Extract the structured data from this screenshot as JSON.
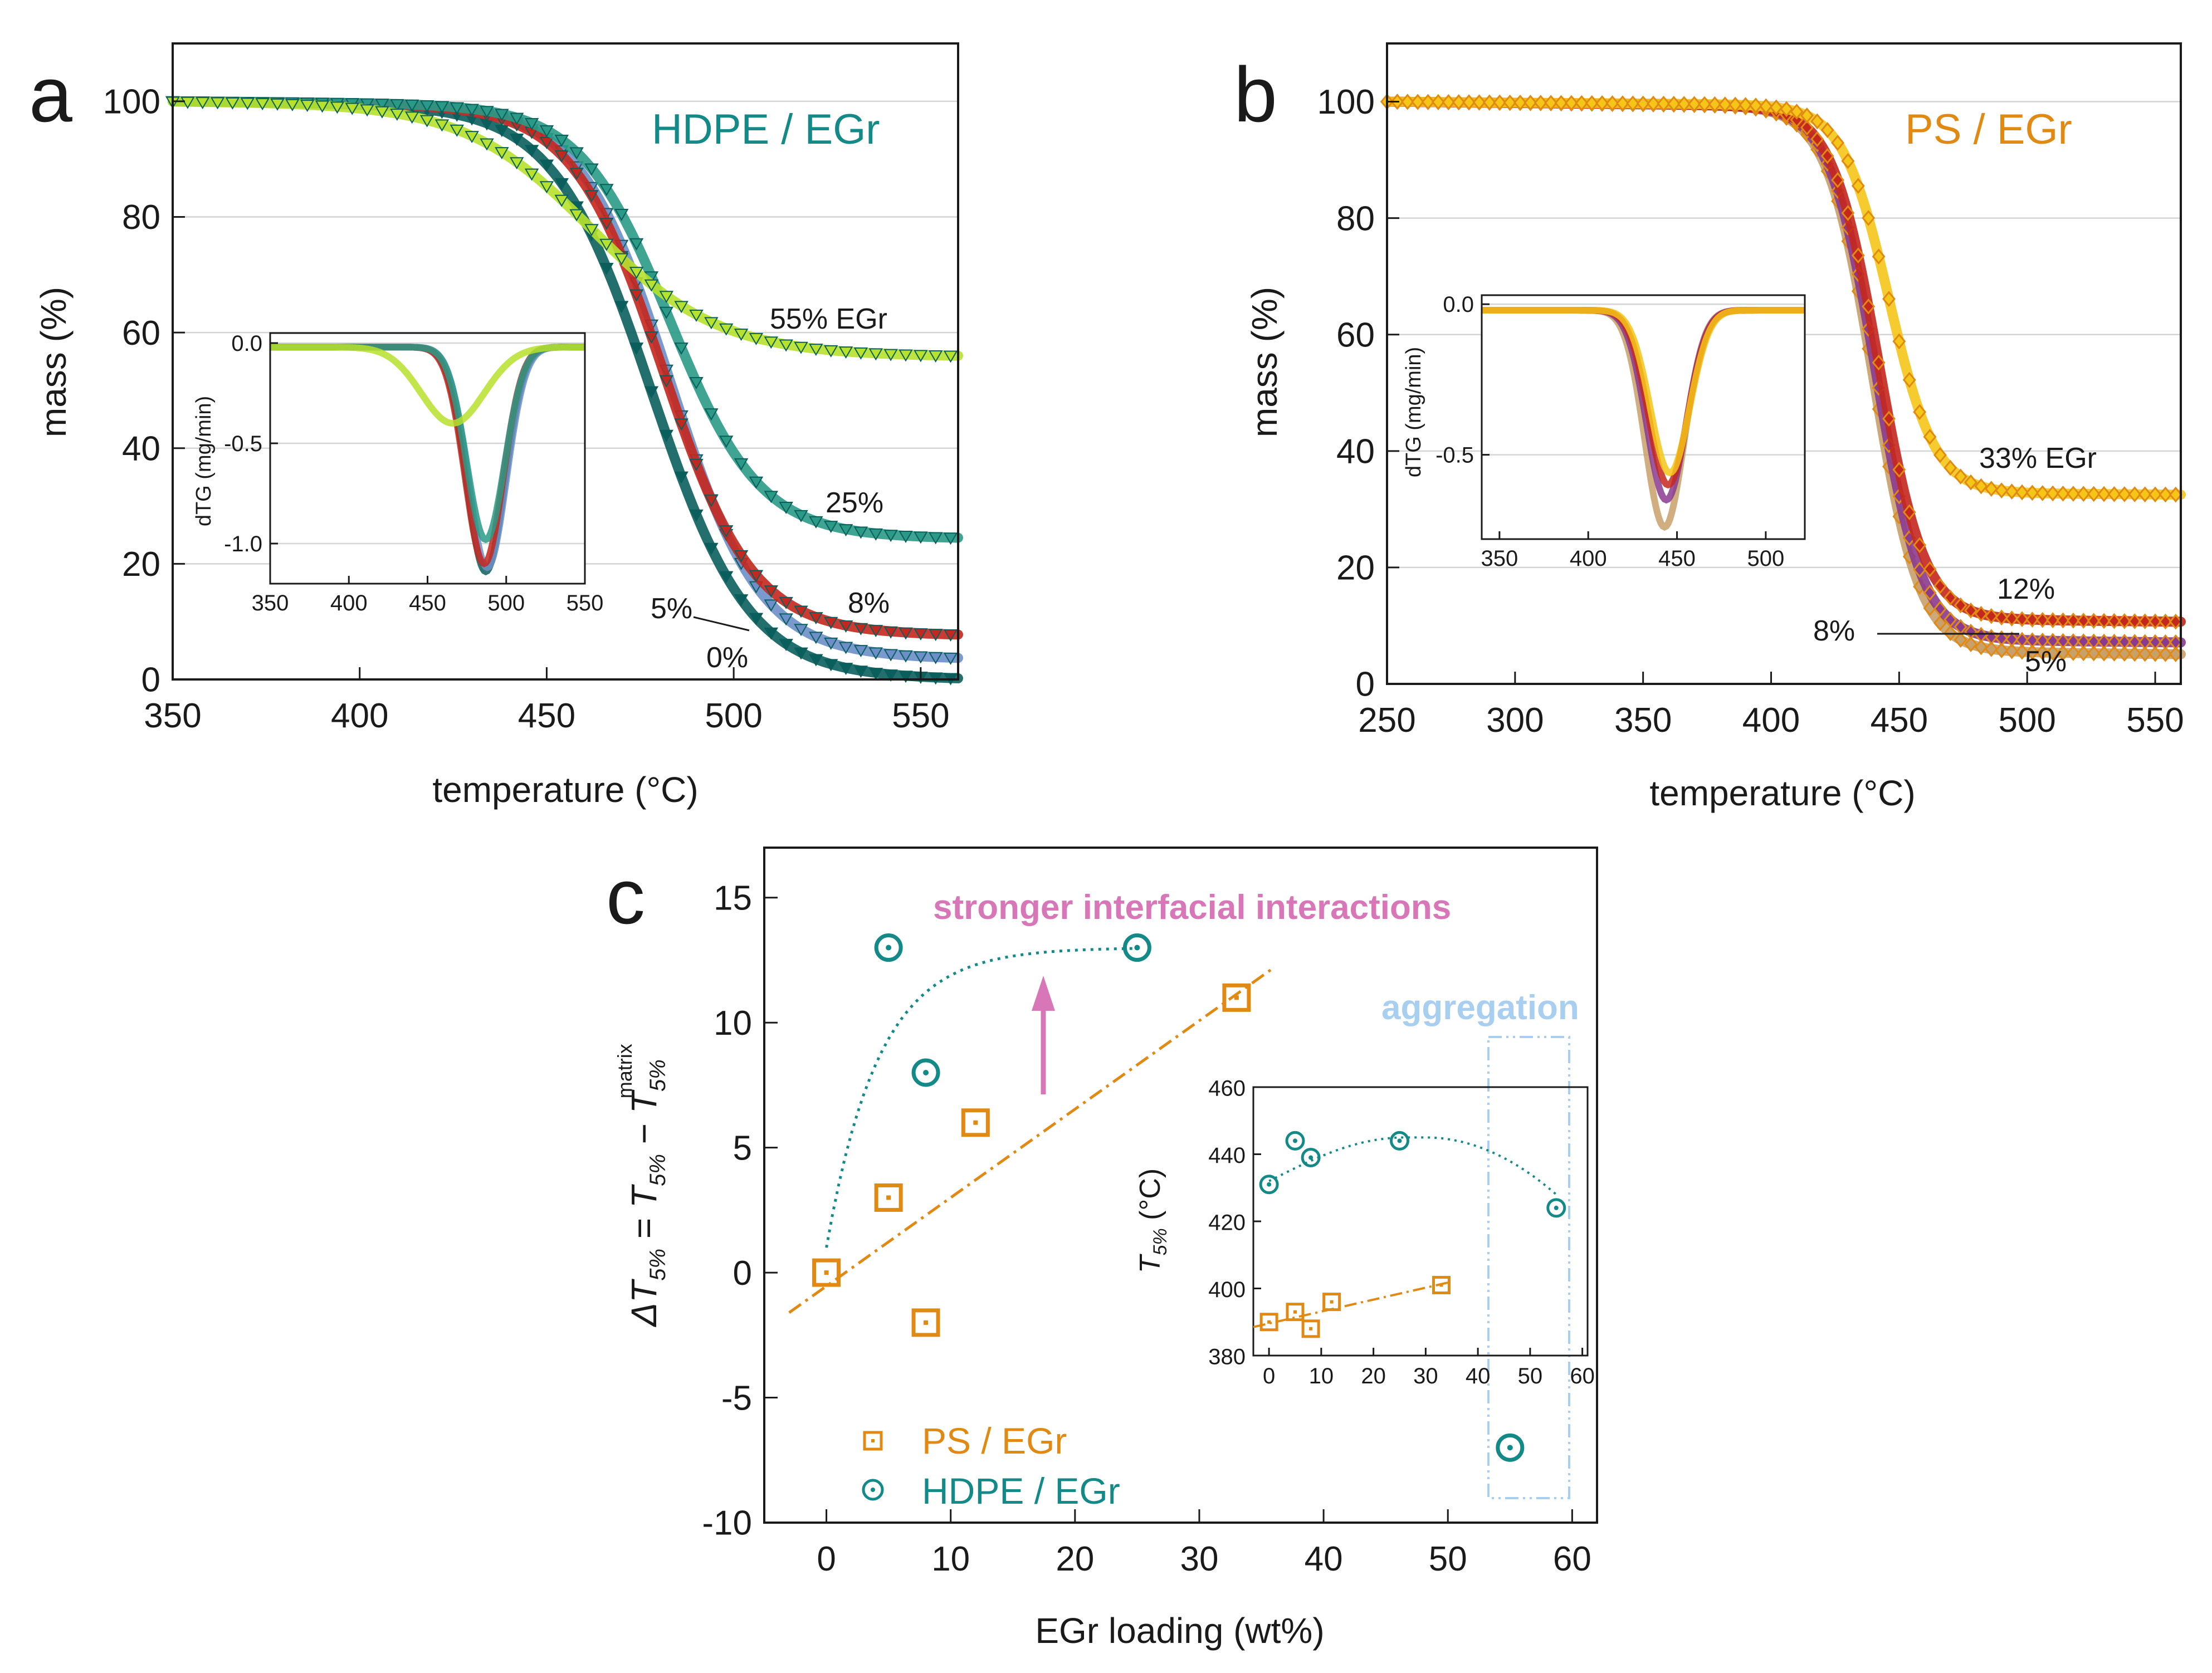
{
  "colors": {
    "hdpe": "#138a87",
    "hdpe_dark": "#0a5f5d",
    "ps": "#e08a14",
    "pink": "#d877b8",
    "agg": "#a9cff0",
    "lime": "#b7e12c",
    "red": "#c4271d",
    "purple": "#8a3a8f",
    "yellow": "#f5c518"
  },
  "chart_data": [
    {
      "panel": "a",
      "type": "line",
      "title": "HDPE / EGr",
      "xlabel": "temperature (°C)",
      "ylabel": "mass (%)",
      "xlim": [
        350,
        560
      ],
      "ylim": [
        0,
        110
      ],
      "xticks": [
        "350",
        "400",
        "450",
        "500",
        "550"
      ],
      "yticks": [
        "0",
        "20",
        "40",
        "60",
        "80",
        "100"
      ],
      "grid": true,
      "series": [
        {
          "name": "0%",
          "label": "0%",
          "onset": 478,
          "width": 13,
          "residue": 1.5,
          "color": "#0a5f5d"
        },
        {
          "name": "5%",
          "label": "5%",
          "onset": 483,
          "width": 12,
          "residue": 5,
          "color": "#6c8fc9"
        },
        {
          "name": "8%",
          "label": "8%",
          "onset": 481,
          "width": 12,
          "residue": 9,
          "color": "#c4271d"
        },
        {
          "name": "25%",
          "label": "25%",
          "onset": 483,
          "width": 12,
          "residue": 25.5,
          "color": "#2a9a86"
        },
        {
          "name": "55% EGr",
          "label": "55% EGr",
          "onset": 462,
          "width": 17,
          "residue": 56.5,
          "color": "#b7e12c"
        }
      ],
      "inset": {
        "ylabel": "dTG (mg/min)",
        "xlim": [
          350,
          550
        ],
        "ylim": [
          -1.2,
          0.05
        ],
        "xticks": [
          "350",
          "400",
          "450",
          "500",
          "550"
        ],
        "yticks": [
          "0.0",
          "-0.5",
          "-1.0"
        ],
        "peaks": [
          {
            "name": "0%",
            "center": 487,
            "depth": 1.12,
            "width": 12
          },
          {
            "name": "5%",
            "center": 488,
            "depth": 1.1,
            "width": 12
          },
          {
            "name": "8%",
            "center": 486,
            "depth": 1.08,
            "width": 12
          },
          {
            "name": "25%",
            "center": 487,
            "depth": 0.96,
            "width": 12
          },
          {
            "name": "55% EGr",
            "center": 466,
            "depth": 0.38,
            "width": 20
          }
        ]
      }
    },
    {
      "panel": "b",
      "type": "line",
      "title": "PS / EGr",
      "xlabel": "temperature (°C)",
      "ylabel": "mass (%)",
      "xlim": [
        250,
        560
      ],
      "ylim": [
        0,
        110
      ],
      "xticks": [
        "250",
        "300",
        "350",
        "400",
        "450",
        "500",
        "550"
      ],
      "yticks": [
        "0",
        "20",
        "40",
        "60",
        "80",
        "100"
      ],
      "grid": true,
      "series": [
        {
          "name": "5%",
          "label": "5%",
          "onset": 440,
          "width": 9,
          "residue": 6.5,
          "color": "#c8a06a"
        },
        {
          "name": "8%",
          "label": "8%",
          "onset": 441,
          "width": 9,
          "residue": 8.5,
          "color": "#8a3a8f"
        },
        {
          "name": "12%",
          "label": "12%",
          "onset": 442,
          "width": 9,
          "residue": 12,
          "color": "#c4271d"
        },
        {
          "name": "33% EGr",
          "label": "33% EGr",
          "onset": 446,
          "width": 9,
          "residue": 33.5,
          "color": "#f5c518"
        }
      ],
      "inset": {
        "ylabel": "dTG (mg/min)",
        "xlim": [
          340,
          522
        ],
        "ylim": [
          -0.78,
          0.03
        ],
        "xticks": [
          "350",
          "400",
          "450",
          "500"
        ],
        "yticks": [
          "0.0",
          "-0.5"
        ],
        "peaks": [
          {
            "name": "5%",
            "center": 443,
            "depth": 0.72,
            "width": 11
          },
          {
            "name": "8%",
            "center": 444,
            "depth": 0.63,
            "width": 11
          },
          {
            "name": "12%",
            "center": 445,
            "depth": 0.58,
            "width": 11
          },
          {
            "name": "33% EGr",
            "center": 446,
            "depth": 0.54,
            "width": 11
          }
        ]
      }
    },
    {
      "panel": "c",
      "type": "scatter",
      "xlabel": "EGr loading (wt%)",
      "ylabel": "ΔT5% = T5% − T5%matrix",
      "xlim": [
        -5,
        62
      ],
      "ylim": [
        -10,
        17
      ],
      "xticks": [
        "0",
        "10",
        "20",
        "30",
        "40",
        "50",
        "60"
      ],
      "yticks": [
        "-10",
        "-5",
        "0",
        "5",
        "10",
        "15"
      ],
      "grid": false,
      "series": [
        {
          "name": "PS / EGr",
          "x": [
            0,
            5,
            8,
            12,
            33
          ],
          "y": [
            0,
            3,
            -2,
            6,
            11
          ]
        },
        {
          "name": "HDPE / EGr",
          "x": [
            0,
            5,
            8,
            25,
            55
          ],
          "y": [
            0,
            13,
            8,
            13,
            -7
          ]
        }
      ],
      "annotations": [
        "stronger interfacial interactions",
        "aggregation"
      ],
      "inset": {
        "ylabel": "T5% (°C)",
        "xlim": [
          -3,
          61
        ],
        "ylim": [
          380,
          460
        ],
        "xticks": [
          "0",
          "10",
          "20",
          "30",
          "40",
          "50",
          "60"
        ],
        "yticks": [
          "380",
          "400",
          "420",
          "440",
          "460"
        ],
        "series": [
          {
            "name": "PS / EGr",
            "x": [
              0,
              5,
              8,
              12,
              33
            ],
            "y": [
              390,
              393,
              388,
              396,
              401
            ]
          },
          {
            "name": "HDPE / EGr",
            "x": [
              0,
              5,
              8,
              25,
              55
            ],
            "y": [
              431,
              444,
              439,
              444,
              424
            ]
          }
        ]
      }
    }
  ]
}
